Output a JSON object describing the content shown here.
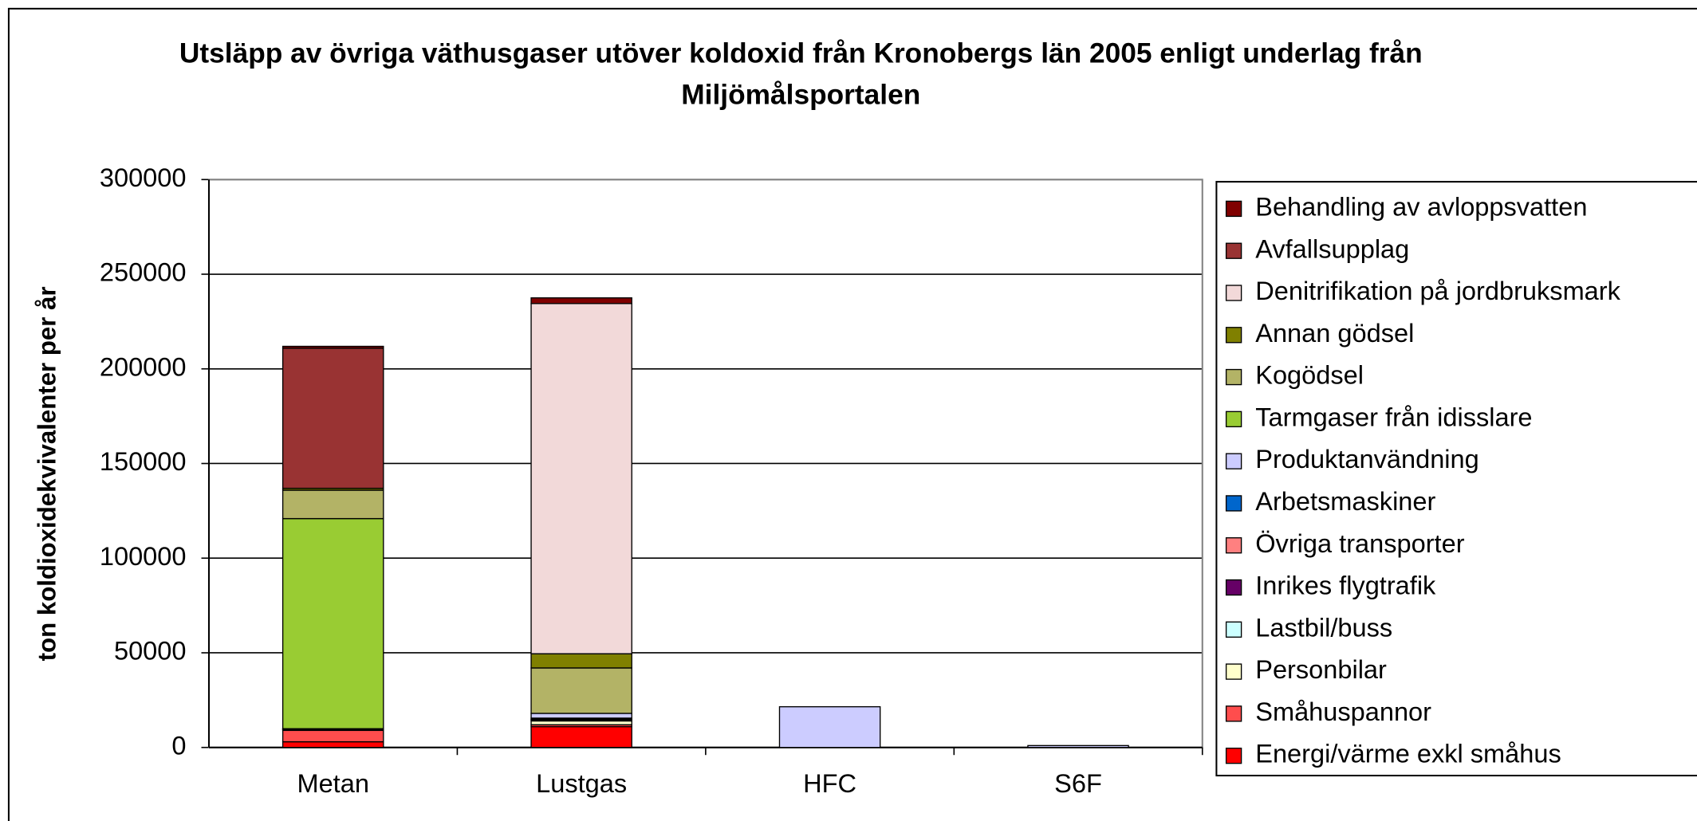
{
  "chart_data": {
    "type": "stacked-bar",
    "title": "Utsläpp av övriga väthusgaser utöver koldoxid från Kronobergs län 2005 enligt underlag från Miljömålsportalen",
    "y_label": "ton koldioxidekvivalenter per år",
    "categories": [
      "Metan",
      "Lustgas",
      "HFC",
      "S6F"
    ],
    "ylim": [
      0,
      300000
    ],
    "yticks": [
      0,
      50000,
      100000,
      150000,
      200000,
      250000,
      300000
    ],
    "grid": true,
    "legend": "right",
    "series": [
      {
        "name": "Energi/värme exkl småhus",
        "color": "#ff0000",
        "values": [
          3000,
          11000,
          0,
          0
        ]
      },
      {
        "name": "Småhuspannor",
        "color": "#ff4d4d",
        "values": [
          6000,
          1000,
          0,
          0
        ]
      },
      {
        "name": "Personbilar",
        "color": "#ffffcc",
        "values": [
          500,
          2000,
          0,
          0
        ]
      },
      {
        "name": "Lastbil/buss",
        "color": "#ccffff",
        "values": [
          200,
          500,
          0,
          0
        ]
      },
      {
        "name": "Inrikes flygtrafik",
        "color": "#660066",
        "values": [
          0,
          200,
          0,
          0
        ]
      },
      {
        "name": "Övriga transporter",
        "color": "#ff8080",
        "values": [
          100,
          300,
          0,
          0
        ]
      },
      {
        "name": "Arbetsmaskiner",
        "color": "#0066cc",
        "values": [
          100,
          500,
          0,
          0
        ]
      },
      {
        "name": "Produktanvändning",
        "color": "#ccccff",
        "values": [
          0,
          2500,
          21500,
          1000
        ]
      },
      {
        "name": "Tarmgaser från idisslare",
        "color": "#99cc33",
        "values": [
          111000,
          0,
          0,
          0
        ]
      },
      {
        "name": "Kogödsel",
        "color": "#b3b366",
        "values": [
          15000,
          24000,
          0,
          0
        ]
      },
      {
        "name": "Annan gödsel",
        "color": "#808000",
        "values": [
          1000,
          7500,
          0,
          0
        ]
      },
      {
        "name": "Denitrifikation på jordbruksmark",
        "color": "#f2d9d9",
        "values": [
          0,
          185000,
          0,
          0
        ]
      },
      {
        "name": "Avfallsupplag",
        "color": "#993333",
        "values": [
          74000,
          0,
          0,
          0
        ]
      },
      {
        "name": "Behandling av avloppsvatten",
        "color": "#800000",
        "values": [
          1000,
          3000,
          0,
          0
        ]
      }
    ]
  }
}
